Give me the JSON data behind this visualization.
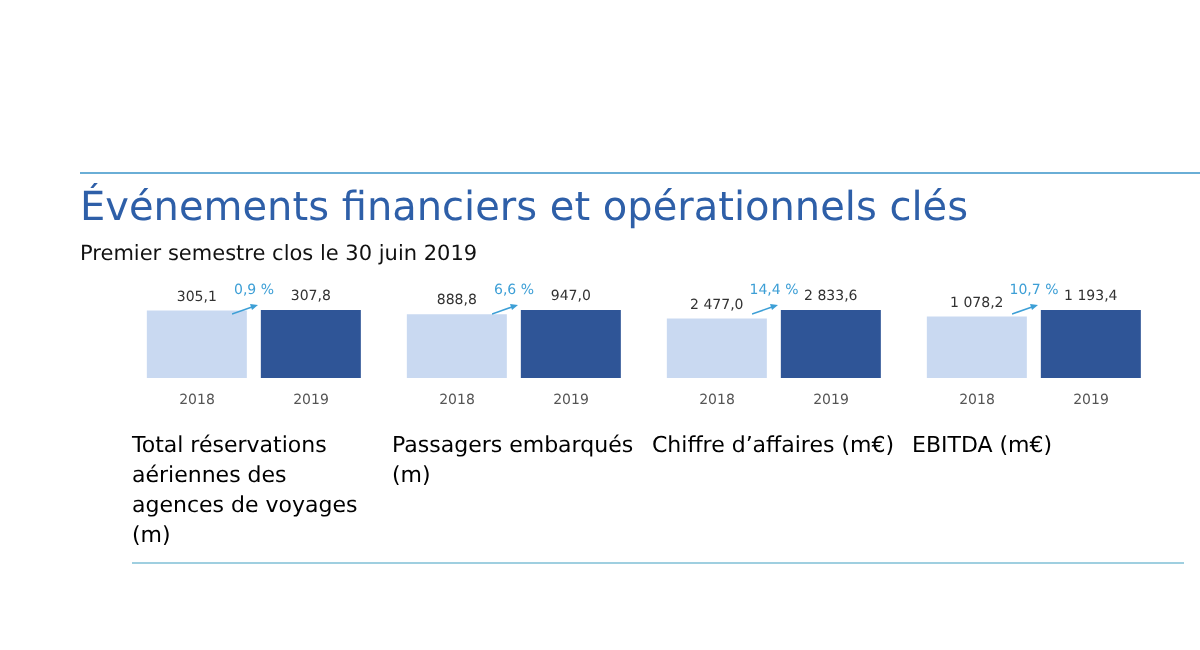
{
  "chart_data": [
    {
      "type": "other",
      "title": "Événements financiers et opérationnels clés",
      "subtitle": "Premier semestre clos le 30 juin 2019"
    },
    {
      "type": "bar",
      "categories": [
        "2018",
        "2019"
      ],
      "values": [
        305.1,
        307.8
      ],
      "value_labels": [
        "305,1",
        "307,8"
      ],
      "colors": [
        "#c9d9f1",
        "#2f5597"
      ],
      "xlabel": "Total réservations aériennes des agences de voyages (m)",
      "annotations": [
        "0,9 %"
      ]
    },
    {
      "type": "bar",
      "categories": [
        "2018",
        "2019"
      ],
      "values": [
        888.8,
        947.0
      ],
      "value_labels": [
        "888,8",
        "947,0"
      ],
      "colors": [
        "#c9d9f1",
        "#2f5597"
      ],
      "xlabel": "Passagers embarqués (m)",
      "annotations": [
        "6,6 %"
      ]
    },
    {
      "type": "bar",
      "categories": [
        "2018",
        "2019"
      ],
      "values": [
        2477.0,
        2833.6
      ],
      "value_labels": [
        "2 477,0",
        "2 833,6"
      ],
      "colors": [
        "#c9d9f1",
        "#2f5597"
      ],
      "xlabel": "Chiffre d’affaires (m€)",
      "annotations": [
        "14,4 %"
      ]
    },
    {
      "type": "bar",
      "categories": [
        "2018",
        "2019"
      ],
      "values": [
        1078.2,
        1193.4
      ],
      "value_labels": [
        "1 078,2",
        "1 193,4"
      ],
      "colors": [
        "#c9d9f1",
        "#2f5597"
      ],
      "xlabel": "EBITDA (m€)",
      "annotations": [
        "10,7 %"
      ]
    }
  ]
}
